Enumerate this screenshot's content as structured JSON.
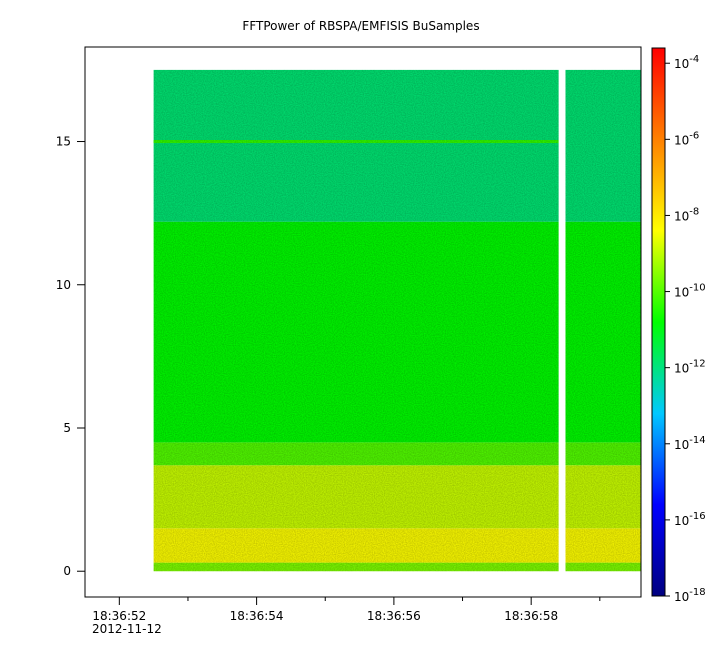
{
  "chart_data": {
    "type": "heatmap",
    "title": "FFTPower of RBSPA/EMFISIS  BuSamples",
    "xlabel": "",
    "ylabel": "",
    "x_date": "2012-11-12",
    "x_ticks": [
      {
        "label": "18:36:52",
        "seconds": 52
      },
      {
        "label": "18:36:54",
        "seconds": 54
      },
      {
        "label": "18:36:56",
        "seconds": 56
      },
      {
        "label": "18:36:58",
        "seconds": 58
      }
    ],
    "x_minor_ticks_seconds": [
      53,
      55,
      57,
      59
    ],
    "xlim_seconds": [
      51.5,
      59.6
    ],
    "y_ticks": [
      0,
      5,
      10,
      15
    ],
    "ylim": [
      -0.9,
      18.3
    ],
    "data_extent": {
      "x_start_seconds": 52.5,
      "x_end_seconds": 59.6,
      "y_start": 0,
      "y_end": 17.5
    },
    "data_gap_seconds": [
      58.4,
      58.5
    ],
    "power_bands": [
      {
        "y_range": [
          0,
          0.3
        ],
        "log10_power": -9.6
      },
      {
        "y_range": [
          0.3,
          1.5
        ],
        "log10_power": -8.4
      },
      {
        "y_range": [
          1.5,
          3.7
        ],
        "log10_power": -8.9
      },
      {
        "y_range": [
          3.7,
          4.5
        ],
        "log10_power": -10.0
      },
      {
        "y_range": [
          4.5,
          12.2
        ],
        "log10_power": -10.8
      },
      {
        "y_range": [
          12.2,
          17.5
        ],
        "log10_power": -11.9
      }
    ],
    "line_features": [
      {
        "y": 15.0,
        "log10_power": -10.3
      }
    ],
    "colorbar": {
      "scale": "log",
      "range_exponents": [
        -18,
        -3.6
      ],
      "tick_exponents": [
        -18,
        -16,
        -14,
        -12,
        -10,
        -8,
        -6,
        -4
      ],
      "tick_base": "10",
      "colors": [
        "#000080",
        "#0000ff",
        "#00c8ff",
        "#00ff00",
        "#ffff00",
        "#ff8000",
        "#ff0000"
      ]
    },
    "grid": false
  }
}
